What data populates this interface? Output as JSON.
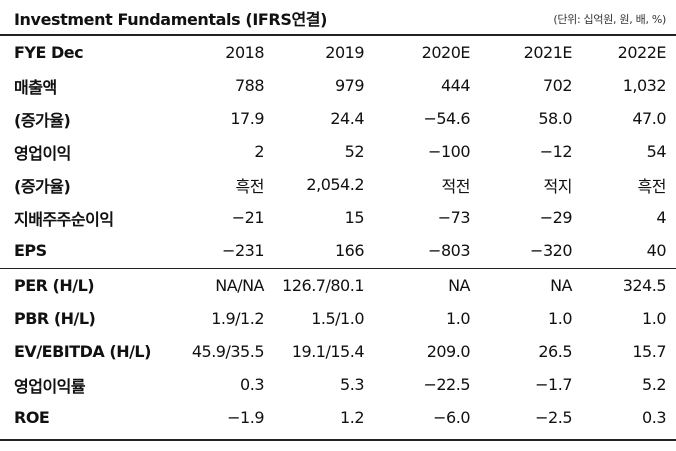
{
  "header": {
    "title": "Investment Fundamentals (IFRS연결)",
    "unit": "(단위: 십억원, 원, 배, %)"
  },
  "columns": {
    "label": "FYE Dec",
    "years": [
      "2018",
      "2019",
      "2020E",
      "2021E",
      "2022E"
    ]
  },
  "rows_top": [
    {
      "label": "매출액",
      "values": [
        "788",
        "979",
        "444",
        "702",
        "1,032"
      ]
    },
    {
      "label": "(증가율)",
      "values": [
        "17.9",
        "24.4",
        "−54.6",
        "58.0",
        "47.0"
      ]
    },
    {
      "label": "영업이익",
      "values": [
        "2",
        "52",
        "−100",
        "−12",
        "54"
      ]
    },
    {
      "label": "(증가율)",
      "values": [
        "흑전",
        "2,054.2",
        "적전",
        "적지",
        "흑전"
      ]
    },
    {
      "label": "지배주주순이익",
      "values": [
        "−21",
        "15",
        "−73",
        "−29",
        "4"
      ]
    },
    {
      "label": "EPS",
      "values": [
        "−231",
        "166",
        "−803",
        "−320",
        "40"
      ]
    }
  ],
  "rows_bottom": [
    {
      "label": "PER (H/L)",
      "values": [
        "NA/NA",
        "126.7/80.1",
        "NA",
        "NA",
        "324.5"
      ]
    },
    {
      "label": "PBR (H/L)",
      "values": [
        "1.9/1.2",
        "1.5/1.0",
        "1.0",
        "1.0",
        "1.0"
      ]
    },
    {
      "label": "EV/EBITDA (H/L)",
      "values": [
        "45.9/35.5",
        "19.1/15.4",
        "209.0",
        "26.5",
        "15.7"
      ]
    },
    {
      "label": "영업이익률",
      "values": [
        "0.3",
        "5.3",
        "−22.5",
        "−1.7",
        "5.2"
      ]
    },
    {
      "label": "ROE",
      "values": [
        "−1.9",
        "1.2",
        "−6.0",
        "−2.5",
        "0.3"
      ]
    }
  ]
}
